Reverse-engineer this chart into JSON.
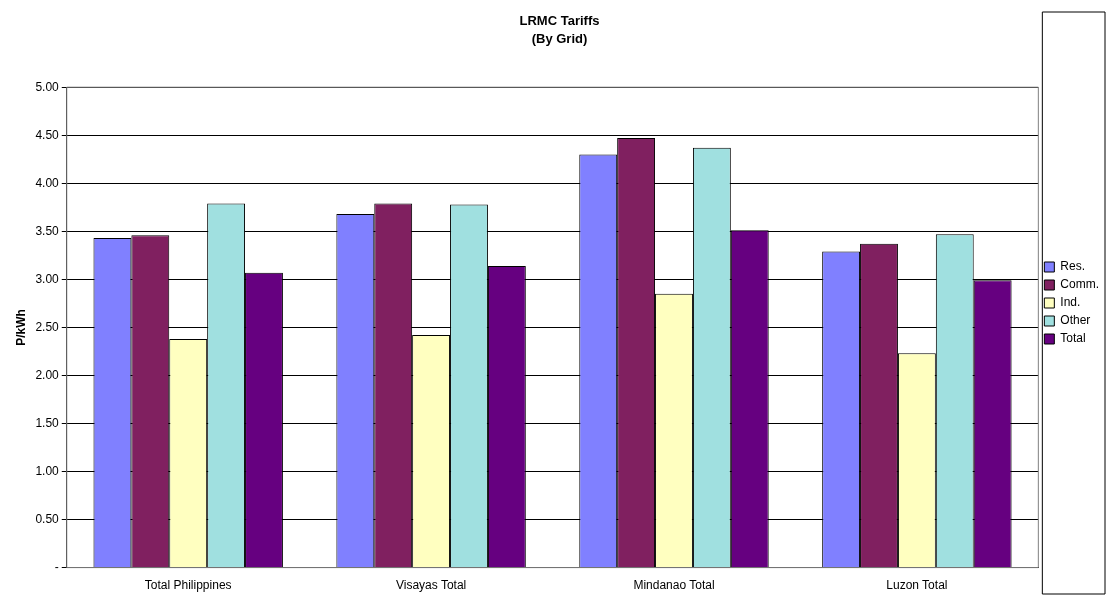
{
  "chart_data": {
    "type": "bar",
    "title": "LRMC Tariffs",
    "subtitle": "(By Grid)",
    "ylabel": "P/kWh",
    "categories": [
      "Total Philippines",
      "Visayas Total",
      "Mindanao Total",
      "Luzon Total"
    ],
    "series": [
      {
        "name": "Res.",
        "color": "#8080ff",
        "values": [
          3.43,
          3.68,
          4.3,
          3.29
        ]
      },
      {
        "name": "Comm.",
        "color": "#802060",
        "values": [
          3.46,
          3.79,
          4.47,
          3.37
        ]
      },
      {
        "name": "Ind.",
        "color": "#ffffc0",
        "values": [
          2.38,
          2.42,
          2.85,
          2.23
        ]
      },
      {
        "name": "Other",
        "color": "#a0e0e0",
        "values": [
          3.79,
          3.78,
          4.37,
          3.47
        ]
      },
      {
        "name": "Total",
        "color": "#660080",
        "values": [
          3.07,
          3.14,
          3.51,
          2.99
        ]
      }
    ],
    "ylim": [
      0,
      5
    ],
    "yticks": [
      {
        "value": 0,
        "label": "-"
      },
      {
        "value": 0.5,
        "label": "0.50"
      },
      {
        "value": 1,
        "label": "1.00"
      },
      {
        "value": 1.5,
        "label": "1.50"
      },
      {
        "value": 2,
        "label": "2.00"
      },
      {
        "value": 2.5,
        "label": "2.50"
      },
      {
        "value": 3,
        "label": "3.00"
      },
      {
        "value": 3.5,
        "label": "3.50"
      },
      {
        "value": 4,
        "label": "4.00"
      },
      {
        "value": 4.5,
        "label": "4.50"
      },
      {
        "value": 5,
        "label": "5.00"
      }
    ],
    "grid": "y",
    "legend": "right"
  }
}
